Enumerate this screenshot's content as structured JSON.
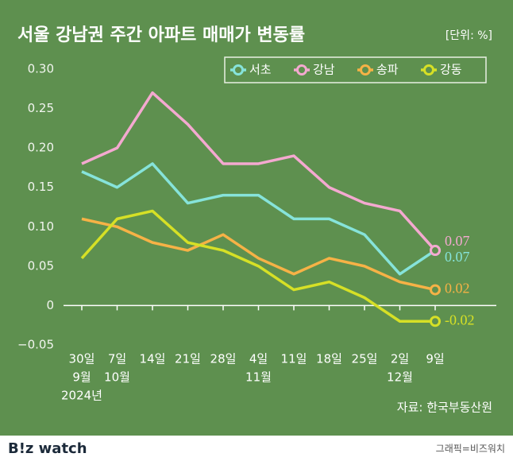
{
  "chart_data": {
    "type": "line",
    "title": "서울 강남권 주간 아파트 매매가 변동률",
    "unit": "[단위: %]",
    "source": "자료: 한국부동산원",
    "brand": "B!z watch",
    "credit": "그래픽=비즈워치",
    "categories": [
      [
        "30일",
        "9월",
        "2024년"
      ],
      [
        "7일",
        "10월"
      ],
      [
        "14일"
      ],
      [
        "21일"
      ],
      [
        "28일"
      ],
      [
        "4일",
        "11월"
      ],
      [
        "11일"
      ],
      [
        "18일"
      ],
      [
        "25일"
      ],
      [
        "2일",
        "12월"
      ],
      [
        "9일"
      ]
    ],
    "series": [
      {
        "name": "서초",
        "color": "#86e3da",
        "values": [
          0.17,
          0.15,
          0.18,
          0.13,
          0.14,
          0.14,
          0.11,
          0.11,
          0.09,
          0.04,
          0.07
        ]
      },
      {
        "name": "강남",
        "color": "#f4a9d0",
        "values": [
          0.18,
          0.2,
          0.27,
          0.23,
          0.18,
          0.18,
          0.19,
          0.15,
          0.13,
          0.12,
          0.07
        ]
      },
      {
        "name": "송파",
        "color": "#f6b246",
        "values": [
          0.11,
          0.1,
          0.08,
          0.07,
          0.09,
          0.06,
          0.04,
          0.06,
          0.05,
          0.03,
          0.02
        ]
      },
      {
        "name": "강동",
        "color": "#d6e026",
        "values": [
          0.06,
          0.11,
          0.12,
          0.08,
          0.07,
          0.05,
          0.02,
          0.03,
          0.01,
          -0.02,
          -0.02
        ]
      }
    ],
    "ylim": [
      -0.05,
      0.3
    ],
    "yticks": [
      {
        "value": 0.3,
        "label": "0.30"
      },
      0.25,
      {
        "value": 0.2,
        "label": "0.20"
      },
      0.15,
      {
        "value": 0.1,
        "label": "0.10"
      },
      0.05,
      0,
      {
        "value": -0.05,
        "label": "−0.05"
      }
    ],
    "legend": "top-right"
  }
}
